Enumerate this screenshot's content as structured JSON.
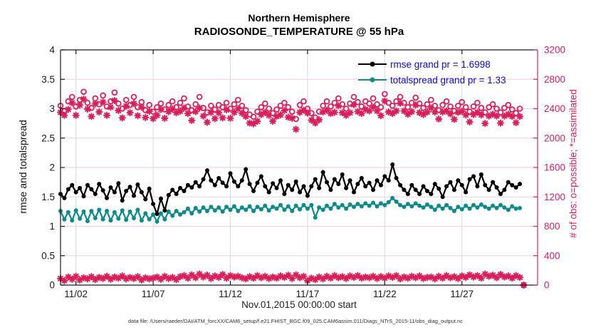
{
  "title": {
    "line1": "Northern Hemisphere",
    "line2": "RADIOSONDE_TEMPERATURE @ 55 hPa"
  },
  "axis_labels": {
    "left": "rmse and totalspread",
    "right": "# of obs: o=possible; *=assimilated",
    "x": "Nov.01,2015 00:00:00 start"
  },
  "legend": {
    "items": [
      {
        "label": "rmse grand pr = 1.6998",
        "color": "#000000"
      },
      {
        "label": "totalspread grand pr = 1.33",
        "color": "#0d8b8b"
      }
    ],
    "text_color": "#0b0bdf"
  },
  "footer": {
    "data_file": "data file: /Users/raeder/DAI/ATM_forcXX/CAM6_setup/f.e21.FHIST_BGC.f09_025.CAM6assim.011/Diags_NTrS_2015-11/obs_diag_output.nc"
  },
  "colors": {
    "rmse": "#000000",
    "totalspread": "#0d8b8b",
    "obs": "#d91e5a",
    "grid_h": "#f6cbd9",
    "grid_v": "#d9d9d9",
    "axis": "#1a1a1a",
    "tick_label": "#1a1a1a"
  },
  "chart_data": {
    "type": "line",
    "title": [
      "Northern Hemisphere",
      "RADIOSONDE_TEMPERATURE @ 55 hPa"
    ],
    "xlabel": "Nov.01,2015 00:00:00 start",
    "ylabel_left": "rmse and totalspread",
    "ylabel_right": "# of obs: o=possible; *=assimilated",
    "x_start_day": 1,
    "x_step_days": 0.25,
    "xlim_days": [
      1,
      31.9
    ],
    "ylim_left": [
      0,
      4
    ],
    "ylim_right": [
      0,
      3200
    ],
    "grid": true,
    "legend_position": "top-right-inside",
    "xticks": [
      {
        "day": 2,
        "label": "11/02"
      },
      {
        "day": 7,
        "label": "11/07"
      },
      {
        "day": 12,
        "label": "11/12"
      },
      {
        "day": 17,
        "label": "11/17"
      },
      {
        "day": 22,
        "label": "11/22"
      },
      {
        "day": 27,
        "label": "11/27"
      }
    ],
    "yticks_left": [
      0,
      0.5,
      1,
      1.5,
      2,
      2.5,
      3,
      3.5,
      4
    ],
    "yticks_left_labels": [
      "0",
      "0.5",
      "1",
      "1.5",
      "2",
      "2.5",
      "3",
      "3.5",
      "4"
    ],
    "yticks_right": [
      0,
      400,
      800,
      1200,
      1600,
      2000,
      2400,
      2800,
      3200
    ],
    "series": [
      {
        "name": "rmse",
        "grand_pr": 1.6998,
        "axis": "left",
        "style": "line-dot",
        "color": "#000000",
        "values": [
          1.55,
          1.48,
          1.63,
          1.7,
          1.58,
          1.65,
          1.51,
          1.7,
          1.63,
          1.55,
          1.72,
          1.61,
          1.48,
          1.66,
          1.58,
          1.73,
          1.44,
          1.6,
          1.67,
          1.52,
          1.71,
          1.58,
          1.46,
          1.64,
          1.38,
          1.21,
          1.47,
          1.27,
          1.53,
          1.62,
          1.55,
          1.65,
          1.6,
          1.7,
          1.66,
          1.75,
          1.68,
          1.8,
          1.95,
          1.78,
          1.7,
          1.82,
          1.74,
          1.68,
          1.9,
          1.76,
          1.68,
          1.78,
          1.97,
          1.72,
          1.6,
          1.74,
          1.85,
          1.68,
          1.58,
          1.73,
          1.65,
          1.78,
          1.55,
          1.7,
          1.62,
          1.76,
          1.58,
          1.68,
          1.52,
          1.68,
          1.8,
          1.65,
          1.92,
          1.75,
          1.62,
          1.8,
          1.72,
          1.88,
          1.65,
          1.78,
          1.58,
          1.72,
          1.82,
          1.68,
          1.74,
          1.62,
          1.78,
          1.7,
          1.85,
          1.78,
          2.05,
          1.82,
          1.7,
          1.62,
          1.55,
          1.7,
          1.62,
          1.55,
          1.68,
          1.6,
          1.55,
          1.72,
          1.64,
          1.5,
          1.68,
          1.75,
          1.62,
          1.78,
          1.7,
          1.58,
          1.8,
          1.85,
          1.68,
          1.88,
          1.7,
          1.62,
          1.75,
          1.66,
          1.55,
          1.62,
          1.75,
          1.7,
          1.66,
          1.72
        ]
      },
      {
        "name": "totalspread",
        "grand_pr": 1.33,
        "axis": "left",
        "style": "line-dot",
        "color": "#0d8b8b",
        "values": [
          1.26,
          1.12,
          1.24,
          1.1,
          1.27,
          1.13,
          1.25,
          1.09,
          1.26,
          1.14,
          1.28,
          1.12,
          1.26,
          1.1,
          1.24,
          1.13,
          1.27,
          1.11,
          1.25,
          1.14,
          1.28,
          1.1,
          1.22,
          1.12,
          1.2,
          1.08,
          1.22,
          1.12,
          1.25,
          1.18,
          1.26,
          1.2,
          1.24,
          1.3,
          1.22,
          1.31,
          1.25,
          1.32,
          1.26,
          1.33,
          1.27,
          1.32,
          1.25,
          1.33,
          1.28,
          1.34,
          1.26,
          1.32,
          1.28,
          1.34,
          1.26,
          1.33,
          1.29,
          1.35,
          1.27,
          1.33,
          1.3,
          1.36,
          1.28,
          1.34,
          1.26,
          1.35,
          1.29,
          1.36,
          1.3,
          1.36,
          1.15,
          1.32,
          1.28,
          1.35,
          1.3,
          1.38,
          1.32,
          1.36,
          1.3,
          1.37,
          1.33,
          1.38,
          1.34,
          1.39,
          1.35,
          1.4,
          1.34,
          1.39,
          1.36,
          1.41,
          1.48,
          1.42,
          1.36,
          1.33,
          1.38,
          1.34,
          1.39,
          1.35,
          1.32,
          1.37,
          1.33,
          1.28,
          1.35,
          1.3,
          1.36,
          1.31,
          1.26,
          1.33,
          1.29,
          1.35,
          1.3,
          1.36,
          1.32,
          1.37,
          1.33,
          1.3,
          1.35,
          1.31,
          1.36,
          1.32,
          1.28,
          1.34,
          1.3,
          1.31
        ]
      },
      {
        "name": "obs_possible",
        "axis": "right",
        "style": "marker",
        "marker": "circle",
        "color": "#d91e5a",
        "values": [
          2440,
          2370,
          2500,
          2560,
          2430,
          2520,
          2630,
          2480,
          2410,
          2540,
          2460,
          2580,
          2430,
          2500,
          2620,
          2470,
          2400,
          2520,
          2450,
          2560,
          2420,
          2490,
          2380,
          2450,
          2360,
          2420,
          2470,
          2390,
          2450,
          2500,
          2420,
          2480,
          2540,
          2430,
          2380,
          2460,
          2560,
          2410,
          2350,
          2440,
          2390,
          2450,
          2420,
          2480,
          2400,
          2460,
          2520,
          2440,
          2380,
          2320,
          2290,
          2360,
          2420,
          2470,
          2400,
          2340,
          2390,
          2440,
          2480,
          2420,
          2360,
          2260,
          2450,
          2500,
          2400,
          2340,
          2280,
          2360,
          2440,
          2500,
          2430,
          2480,
          2540,
          2460,
          2400,
          2470,
          2560,
          2490,
          2430,
          2500,
          2470,
          2540,
          2460,
          2420,
          2600,
          2480,
          2440,
          2500,
          2560,
          2480,
          2420,
          2480,
          2550,
          2470,
          2410,
          2460,
          2520,
          2440,
          2380,
          2450,
          2500,
          2430,
          2370,
          2440,
          2490,
          2420,
          2360,
          2430,
          2480,
          2410,
          2350,
          2420,
          2460,
          2400,
          2350,
          2410,
          2450,
          2390,
          2340,
          2400,
          0
        ]
      },
      {
        "name": "obs_assimilated",
        "axis": "right",
        "style": "marker",
        "marker": "asterisk",
        "color": "#d91e5a",
        "values": [
          2350,
          2310,
          2390,
          2480,
          2310,
          2450,
          2530,
          2395,
          2295,
          2465,
          2355,
          2490,
          2310,
          2420,
          2510,
          2375,
          2275,
          2435,
          2345,
          2470,
          2305,
          2420,
          2280,
          2365,
          2265,
          2310,
          2390,
          2270,
          2360,
          2395,
          2345,
          2365,
          2410,
          2335,
          2240,
          2360,
          2410,
          2300,
          2215,
          2350,
          2265,
          2345,
          2275,
          2385,
          2270,
          2350,
          2400,
          2340,
          2295,
          2205,
          2195,
          2230,
          2320,
          2350,
          2310,
          2230,
          2295,
          2315,
          2375,
          2285,
          2270,
          2120,
          2350,
          2380,
          2340,
          2245,
          2205,
          2250,
          2355,
          2380,
          2335,
          2350,
          2440,
          2345,
          2310,
          2345,
          2455,
          2360,
          2335,
          2390,
          2370,
          2420,
          2370,
          2305,
          2505,
          2355,
          2335,
          2370,
          2475,
          2370,
          2325,
          2360,
          2450,
          2345,
          2320,
          2355,
          2410,
          2355,
          2260,
          2355,
          2370,
          2330,
          2255,
          2350,
          2365,
          2315,
          2220,
          2320,
          2350,
          2315,
          2200,
          2300,
          2325,
          2300,
          2205,
          2300,
          2325,
          2295,
          2210,
          2295,
          0
        ]
      },
      {
        "name": "obs_possible_minus_assimilated",
        "axis": "right",
        "style": "marker",
        "marker": "asterisk",
        "color": "#d91e5a",
        "values": [
          90,
          60,
          110,
          80,
          120,
          70,
          100,
          85,
          115,
          75,
          105,
          90,
          120,
          80,
          110,
          95,
          125,
          85,
          105,
          90,
          115,
          70,
          100,
          85,
          95,
          110,
          80,
          120,
          90,
          105,
          75,
          115,
          130,
          95,
          140,
          100,
          150,
          110,
          135,
          90,
          125,
          105,
          145,
          95,
          130,
          110,
          120,
          100,
          85,
          115,
          95,
          130,
          100,
          120,
          90,
          110,
          95,
          125,
          105,
          135,
          90,
          140,
          100,
          120,
          60,
          95,
          75,
          110,
          85,
          120,
          95,
          130,
          100,
          115,
          90,
          125,
          105,
          130,
          95,
          110,
          100,
          120,
          90,
          115,
          95,
          125,
          105,
          130,
          85,
          110,
          95,
          120,
          100,
          125,
          90,
          105,
          110,
          85,
          120,
          95,
          130,
          100,
          115,
          90,
          125,
          105,
          140,
          110,
          130,
          95,
          150,
          120,
          135,
          100,
          145,
          110,
          125,
          95,
          130,
          105,
          0
        ]
      }
    ]
  }
}
